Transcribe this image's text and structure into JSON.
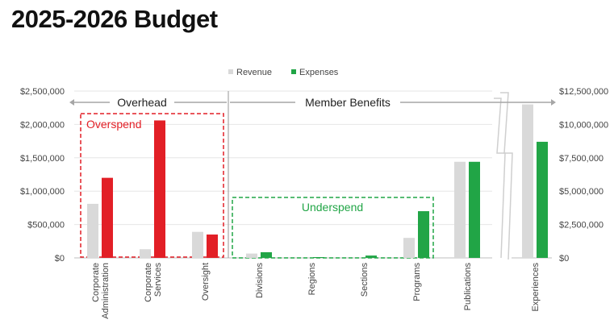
{
  "title": "2025-2026 Budget",
  "colors": {
    "revenue": "#d9d9d9",
    "overhead_expense": "#e21f26",
    "benefit_expense": "#21a546",
    "overspend": "#e21f26",
    "underspend": "#21a546",
    "axis_text": "#444444",
    "grid": "#e6e6e6",
    "arrow": "#a6a6a6"
  },
  "chart_data": {
    "type": "bar",
    "title": "2025-2026 Budget",
    "legend": [
      {
        "name": "Revenue",
        "color": "#d9d9d9"
      },
      {
        "name": "Expenses",
        "color": "#21a546"
      }
    ],
    "legend_position": "top-center",
    "left_axis": {
      "ylim": [
        0,
        2500000
      ],
      "ticks": [
        "$0",
        "$500,000",
        "$1,000,000",
        "$1,500,000",
        "$2,000,000",
        "$2,500,000"
      ]
    },
    "right_axis": {
      "ylim": [
        0,
        12500000
      ],
      "ticks": [
        "$0",
        "$2,500,000",
        "$5,000,000",
        "$7,500,000",
        "$10,000,000",
        "$12,500,000"
      ]
    },
    "categories": [
      {
        "label": "Corporate Administration",
        "lines": [
          "Corporate",
          "Administration"
        ],
        "group": "Overhead",
        "axis": "left",
        "revenue": 810000,
        "expenses": 1200000
      },
      {
        "label": "Corporate Services",
        "lines": [
          "Corporate",
          "Services"
        ],
        "group": "Overhead",
        "axis": "left",
        "revenue": 130000,
        "expenses": 2060000
      },
      {
        "label": "Oversight",
        "lines": [
          "Oversight"
        ],
        "group": "Overhead",
        "axis": "left",
        "revenue": 390000,
        "expenses": 350000
      },
      {
        "label": "Divisions",
        "lines": [
          "Divisions"
        ],
        "group": "Member Benefits",
        "axis": "left",
        "revenue": 65000,
        "expenses": 85000
      },
      {
        "label": "Regions",
        "lines": [
          "Regions"
        ],
        "group": "Member Benefits",
        "axis": "left",
        "revenue": 0,
        "expenses": 12000
      },
      {
        "label": "Sections",
        "lines": [
          "Sections"
        ],
        "group": "Member Benefits",
        "axis": "left",
        "revenue": 0,
        "expenses": 35000
      },
      {
        "label": "Programs",
        "lines": [
          "Programs"
        ],
        "group": "Member Benefits",
        "axis": "left",
        "revenue": 300000,
        "expenses": 700000
      },
      {
        "label": "Publications",
        "lines": [
          "Publications"
        ],
        "group": "Member Benefits",
        "axis": "left",
        "revenue": 1440000,
        "expenses": 1440000
      },
      {
        "label": "Experiences",
        "lines": [
          "Experiences"
        ],
        "group": "Member Benefits",
        "axis": "right",
        "revenue": 11500000,
        "expenses": 8700000
      }
    ],
    "groups": [
      {
        "name": "Overhead"
      },
      {
        "name": "Member Benefits"
      }
    ],
    "annotations": [
      {
        "text": "Overspend",
        "color": "#e21f26",
        "categories": [
          "Corporate Administration",
          "Corporate Services",
          "Oversight"
        ]
      },
      {
        "text": "Underspend",
        "color": "#21a546",
        "categories": [
          "Divisions",
          "Regions",
          "Sections",
          "Programs"
        ]
      }
    ]
  }
}
